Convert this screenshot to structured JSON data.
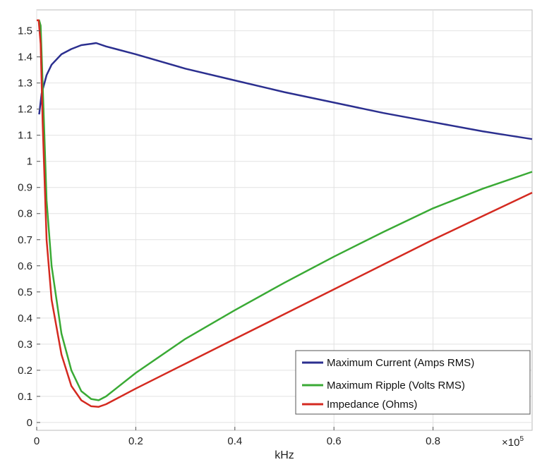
{
  "chart_data": {
    "type": "line",
    "xlabel": "kHz",
    "ylabel": "",
    "x_multiplier_label": "×10",
    "x_multiplier_exp": "5",
    "xlim": [
      0,
      1.0
    ],
    "ylim": [
      -0.03,
      1.58
    ],
    "x_ticks": [
      0,
      0.2,
      0.4,
      0.6,
      0.8
    ],
    "x_tick_labels": [
      "0",
      "0.2",
      "0.4",
      "0.6",
      "0.8"
    ],
    "y_ticks": [
      0,
      0.1,
      0.2,
      0.3,
      0.4,
      0.5,
      0.6,
      0.7,
      0.8,
      0.9,
      1,
      1.1,
      1.2,
      1.3,
      1.4,
      1.5
    ],
    "y_tick_labels": [
      "0",
      "0.1",
      "0.2",
      "0.3",
      "0.4",
      "0.5",
      "0.6",
      "0.7",
      "0.8",
      "0.9",
      "1",
      "1.1",
      "1.2",
      "1.3",
      "1.4",
      "1.5"
    ],
    "grid": true,
    "legend_position": "bottom-right",
    "series": [
      {
        "name": "Maximum Current (Amps RMS)",
        "color": "#2b2f8f",
        "x": [
          0.005,
          0.01,
          0.02,
          0.03,
          0.05,
          0.07,
          0.09,
          0.11,
          0.12,
          0.14,
          0.16,
          0.2,
          0.3,
          0.4,
          0.5,
          0.6,
          0.7,
          0.8,
          0.9,
          0.95,
          1.0
        ],
        "y": [
          1.18,
          1.26,
          1.33,
          1.37,
          1.41,
          1.43,
          1.445,
          1.45,
          1.453,
          1.44,
          1.43,
          1.41,
          1.355,
          1.31,
          1.265,
          1.225,
          1.185,
          1.15,
          1.115,
          1.1,
          1.085
        ]
      },
      {
        "name": "Maximum Ripple (Volts RMS)",
        "color": "#3aaa35",
        "x": [
          0.0,
          0.005,
          0.008,
          0.012,
          0.02,
          0.03,
          0.05,
          0.07,
          0.09,
          0.11,
          0.125,
          0.14,
          0.16,
          0.2,
          0.3,
          0.4,
          0.5,
          0.6,
          0.7,
          0.8,
          0.9,
          1.0
        ],
        "y": [
          1.54,
          1.54,
          1.52,
          1.3,
          0.85,
          0.6,
          0.34,
          0.2,
          0.12,
          0.09,
          0.085,
          0.1,
          0.13,
          0.19,
          0.32,
          0.43,
          0.535,
          0.635,
          0.73,
          0.82,
          0.895,
          0.96
        ]
      },
      {
        "name": "Impedance (Ohms)",
        "color": "#d42a20",
        "x": [
          0.0,
          0.004,
          0.008,
          0.012,
          0.02,
          0.03,
          0.05,
          0.07,
          0.09,
          0.11,
          0.125,
          0.14,
          0.16,
          0.2,
          0.3,
          0.4,
          0.5,
          0.6,
          0.7,
          0.8,
          0.9,
          1.0
        ],
        "y": [
          1.54,
          1.54,
          1.45,
          1.15,
          0.7,
          0.47,
          0.26,
          0.14,
          0.085,
          0.062,
          0.06,
          0.07,
          0.09,
          0.13,
          0.225,
          0.32,
          0.415,
          0.51,
          0.605,
          0.7,
          0.79,
          0.88
        ]
      }
    ]
  }
}
